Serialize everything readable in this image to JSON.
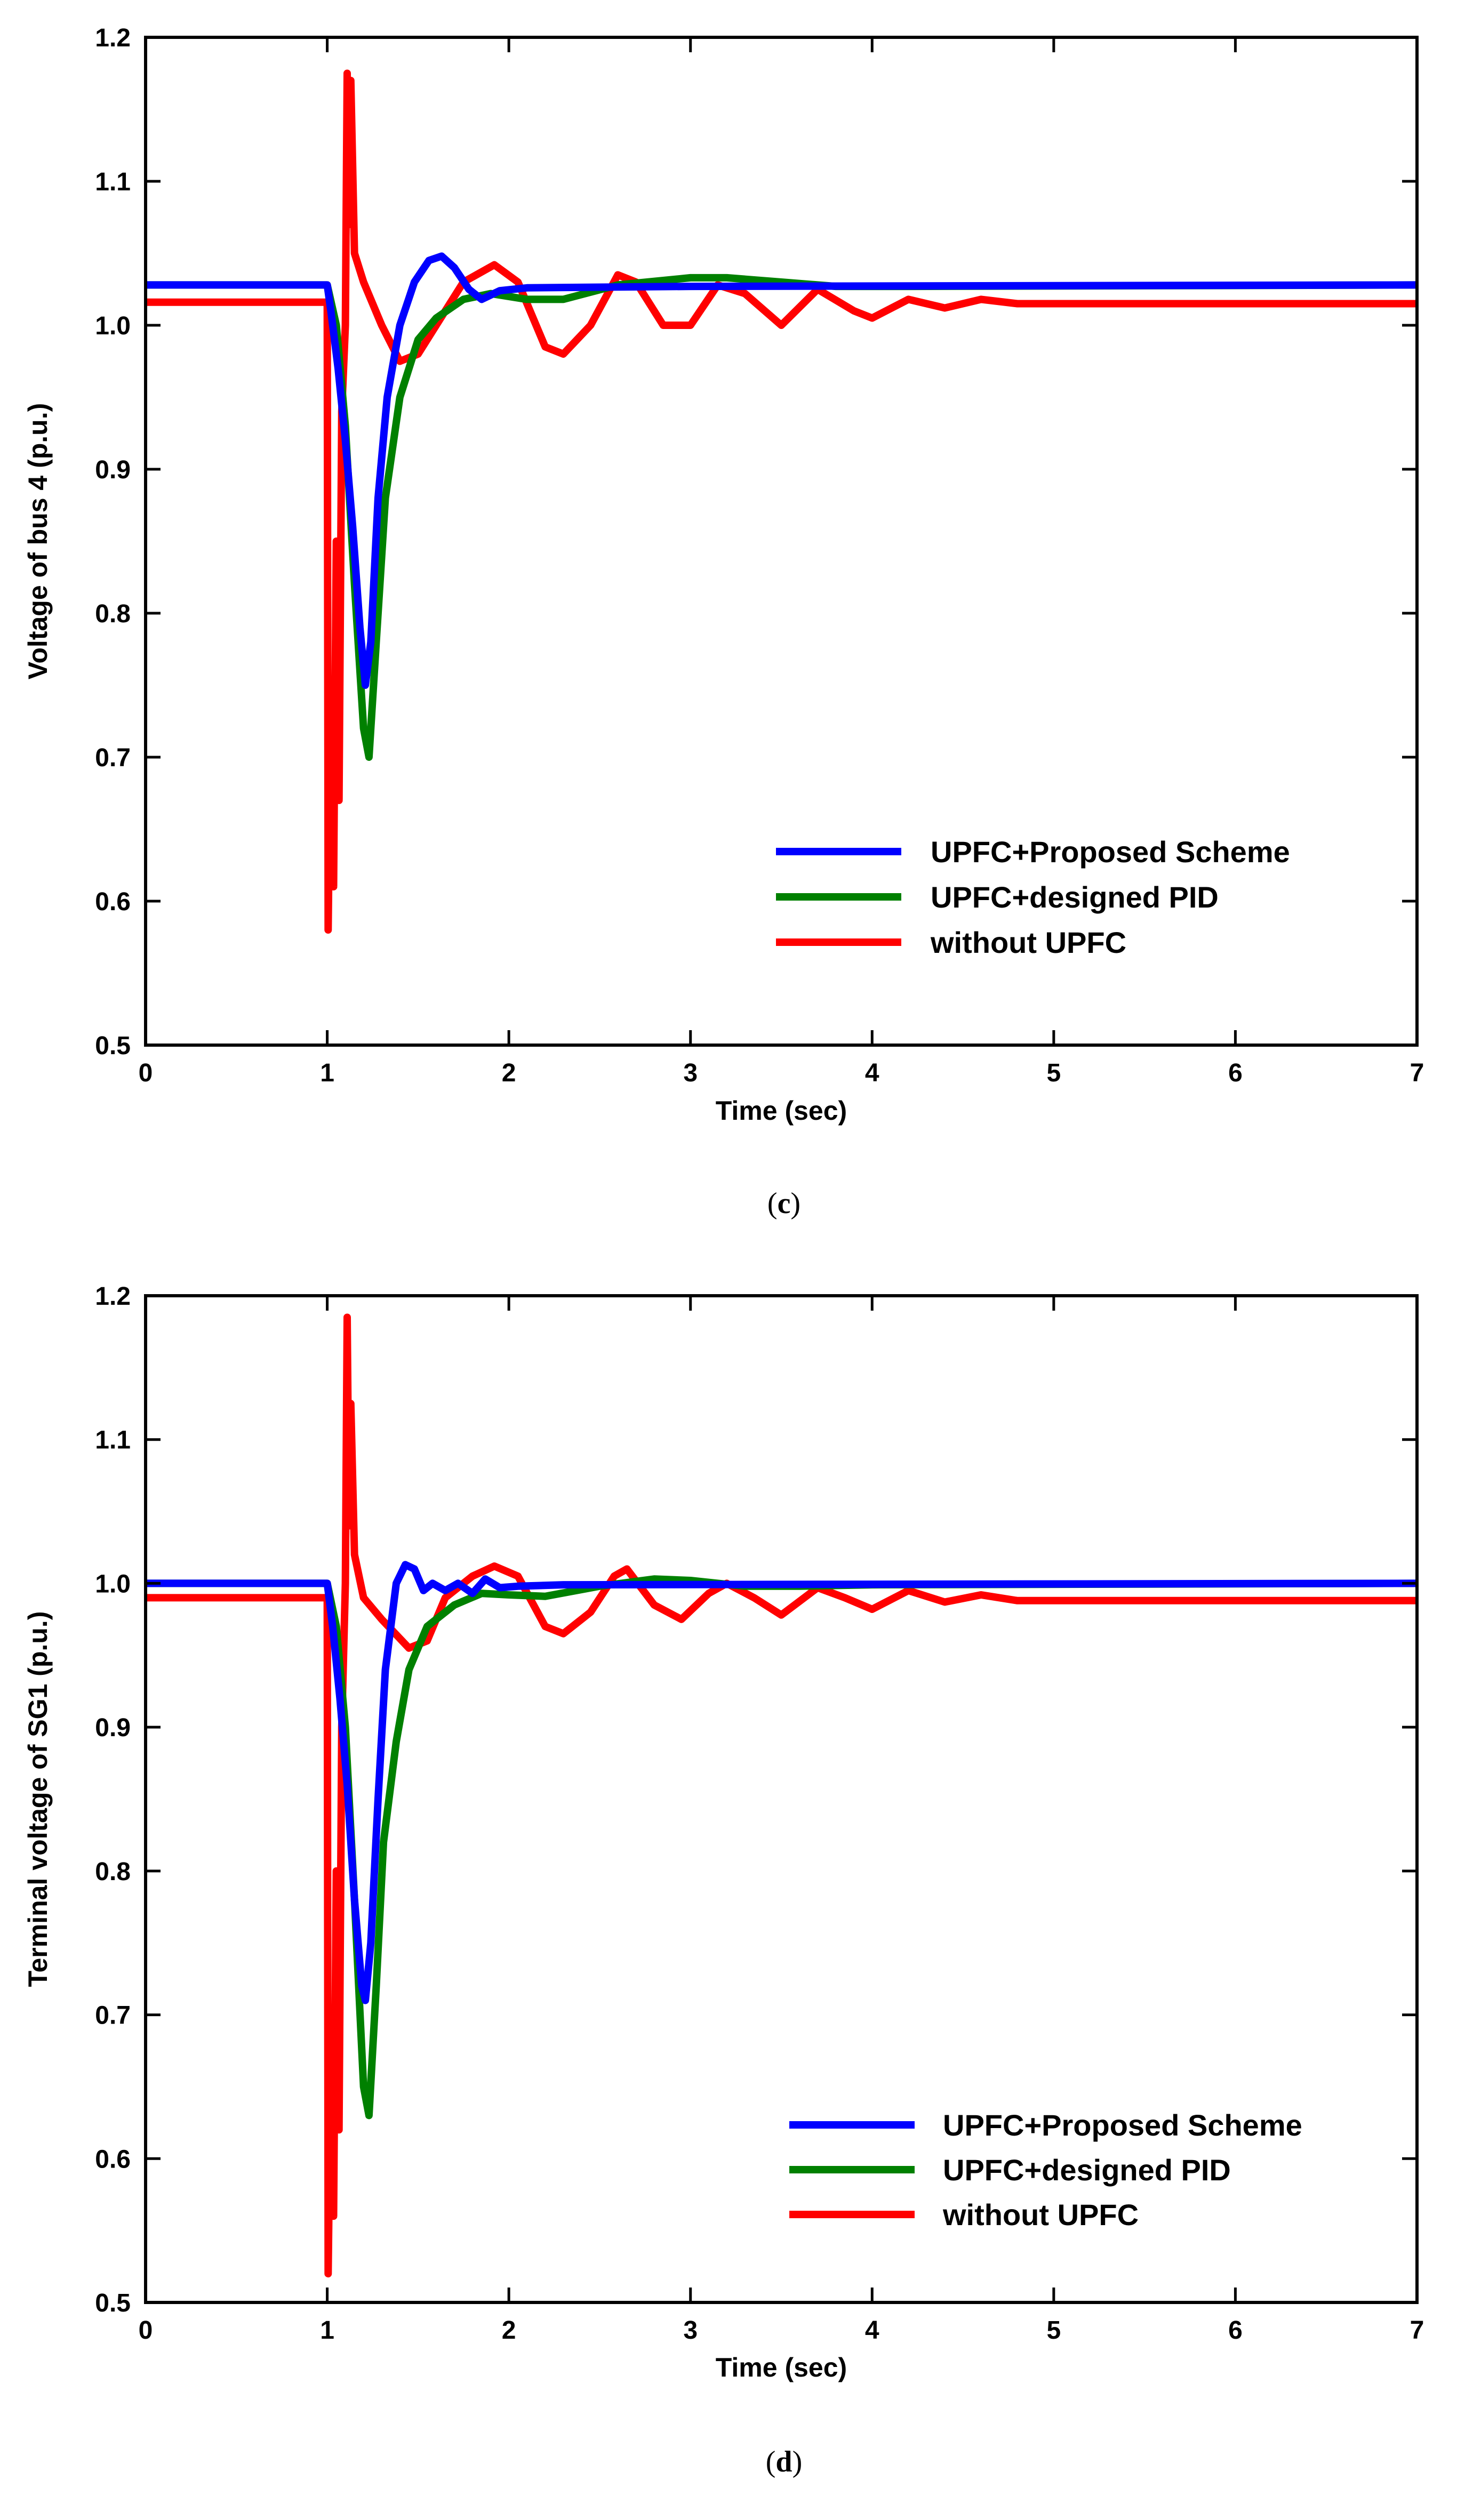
{
  "chart_data": [
    {
      "type": "line",
      "caption": "c",
      "title": "",
      "xlabel": "Time (sec)",
      "ylabel": "Voltage of bus 4 (p.u.)",
      "xlim": [
        0,
        7
      ],
      "ylim": [
        0.5,
        1.2
      ],
      "xticks": [
        0,
        1,
        2,
        3,
        4,
        5,
        6,
        7
      ],
      "xtick_labels": [
        "0",
        "1",
        "2",
        "3",
        "4",
        "5",
        "6",
        "7"
      ],
      "yticks": [
        0.5,
        0.6,
        0.7,
        0.8,
        0.9,
        1.0,
        1.1,
        1.2
      ],
      "ytick_labels": [
        "0.5",
        "0.6",
        "0.7",
        "0.8",
        "0.9",
        "1.0",
        "1.1",
        "1.2"
      ],
      "grid": false,
      "legend_position": "bottom-right",
      "series": [
        {
          "name": "UPFC+Proposed Scheme",
          "color": "#0000ff",
          "x": [
            0,
            1.0,
            1.02,
            1.06,
            1.1,
            1.14,
            1.18,
            1.21,
            1.24,
            1.28,
            1.33,
            1.4,
            1.48,
            1.56,
            1.63,
            1.7,
            1.78,
            1.85,
            1.95,
            2.1,
            3.0,
            7.0
          ],
          "y": [
            1.028,
            1.028,
            1.01,
            0.97,
            0.92,
            0.86,
            0.79,
            0.75,
            0.78,
            0.88,
            0.95,
            1.0,
            1.03,
            1.045,
            1.048,
            1.04,
            1.025,
            1.018,
            1.024,
            1.026,
            1.027,
            1.028
          ]
        },
        {
          "name": "UPFC+designed PID",
          "color": "#008000",
          "x": [
            0,
            1.0,
            1.05,
            1.1,
            1.15,
            1.2,
            1.23,
            1.27,
            1.32,
            1.4,
            1.5,
            1.6,
            1.75,
            1.9,
            2.1,
            2.3,
            2.6,
            3.0,
            3.2,
            3.5,
            3.8,
            4.2,
            7.0
          ],
          "y": [
            1.028,
            1.028,
            1.0,
            0.93,
            0.82,
            0.72,
            0.7,
            0.78,
            0.88,
            0.95,
            0.99,
            1.005,
            1.018,
            1.022,
            1.018,
            1.018,
            1.028,
            1.033,
            1.033,
            1.03,
            1.027,
            1.027,
            1.028
          ]
        },
        {
          "name": "without UPFC",
          "color": "#ff0000",
          "x": [
            0,
            1.0,
            1.005,
            1.02,
            1.035,
            1.05,
            1.065,
            1.08,
            1.1,
            1.11,
            1.12,
            1.13,
            1.15,
            1.2,
            1.3,
            1.4,
            1.5,
            1.6,
            1.75,
            1.92,
            2.05,
            2.2,
            2.3,
            2.45,
            2.6,
            2.7,
            2.85,
            3.0,
            3.15,
            3.3,
            3.5,
            3.7,
            3.9,
            4.0,
            4.2,
            4.4,
            4.6,
            4.8,
            7.0
          ],
          "y": [
            1.016,
            1.016,
            0.58,
            0.75,
            0.61,
            0.85,
            0.67,
            0.94,
            1.0,
            1.175,
            1.07,
            1.17,
            1.05,
            1.03,
            1.0,
            0.975,
            0.98,
            1.0,
            1.03,
            1.042,
            1.03,
            0.985,
            0.98,
            1.0,
            1.035,
            1.03,
            1.0,
            1.0,
            1.028,
            1.022,
            1.0,
            1.025,
            1.01,
            1.005,
            1.018,
            1.012,
            1.018,
            1.015,
            1.015
          ]
        }
      ]
    },
    {
      "type": "line",
      "caption": "d",
      "title": "",
      "xlabel": "Time (sec)",
      "ylabel": "Terminal voltage of SG1 (p.u.)",
      "xlim": [
        0,
        7
      ],
      "ylim": [
        0.5,
        1.2
      ],
      "xticks": [
        0,
        1,
        2,
        3,
        4,
        5,
        6,
        7
      ],
      "xtick_labels": [
        "0",
        "1",
        "2",
        "3",
        "4",
        "5",
        "6",
        "7"
      ],
      "yticks": [
        0.5,
        0.6,
        0.7,
        0.8,
        0.9,
        1.0,
        1.1,
        1.2
      ],
      "ytick_labels": [
        "0.5",
        "0.6",
        "0.7",
        "0.8",
        "0.9",
        "1.0",
        "1.1",
        "1.2"
      ],
      "grid": false,
      "legend_position": "bottom-right",
      "series": [
        {
          "name": "UPFC+Proposed Scheme",
          "color": "#0000ff",
          "x": [
            0,
            1.0,
            1.03,
            1.07,
            1.11,
            1.15,
            1.19,
            1.21,
            1.24,
            1.28,
            1.32,
            1.38,
            1.43,
            1.48,
            1.53,
            1.58,
            1.65,
            1.72,
            1.8,
            1.87,
            1.95,
            2.05,
            2.3,
            7.0
          ],
          "y": [
            1.0,
            1.0,
            0.97,
            0.92,
            0.86,
            0.78,
            0.72,
            0.71,
            0.75,
            0.85,
            0.94,
            1.0,
            1.013,
            1.01,
            0.995,
            1.0,
            0.995,
            1.0,
            0.993,
            1.003,
            0.997,
            0.998,
            0.999,
            1.0
          ]
        },
        {
          "name": "UPFC+designed PID",
          "color": "#008000",
          "x": [
            0,
            1.0,
            1.05,
            1.1,
            1.15,
            1.2,
            1.23,
            1.27,
            1.31,
            1.38,
            1.45,
            1.55,
            1.7,
            1.85,
            2.0,
            2.2,
            2.5,
            2.8,
            3.0,
            3.3,
            3.6,
            4.0,
            7.0
          ],
          "y": [
            1.0,
            1.0,
            0.97,
            0.9,
            0.78,
            0.65,
            0.63,
            0.72,
            0.82,
            0.89,
            0.94,
            0.97,
            0.985,
            0.993,
            0.992,
            0.991,
            0.998,
            1.003,
            1.002,
            0.998,
            0.998,
            0.999,
            1.0
          ]
        },
        {
          "name": "without UPFC",
          "color": "#ff0000",
          "x": [
            0,
            1.0,
            1.005,
            1.02,
            1.035,
            1.05,
            1.065,
            1.08,
            1.1,
            1.11,
            1.12,
            1.13,
            1.15,
            1.2,
            1.3,
            1.45,
            1.55,
            1.65,
            1.8,
            1.92,
            2.05,
            2.2,
            2.3,
            2.45,
            2.58,
            2.65,
            2.8,
            2.95,
            3.1,
            3.2,
            3.35,
            3.5,
            3.7,
            3.85,
            4.0,
            4.2,
            4.4,
            4.6,
            4.8,
            7.0
          ],
          "y": [
            0.99,
            0.99,
            0.52,
            0.68,
            0.56,
            0.8,
            0.62,
            0.9,
            1.0,
            1.185,
            1.04,
            1.125,
            1.02,
            0.99,
            0.975,
            0.955,
            0.96,
            0.99,
            1.005,
            1.012,
            1.005,
            0.97,
            0.965,
            0.98,
            1.005,
            1.01,
            0.985,
            0.975,
            0.993,
            1.0,
            0.99,
            0.978,
            0.997,
            0.99,
            0.982,
            0.995,
            0.987,
            0.992,
            0.988,
            0.988
          ]
        }
      ]
    }
  ]
}
